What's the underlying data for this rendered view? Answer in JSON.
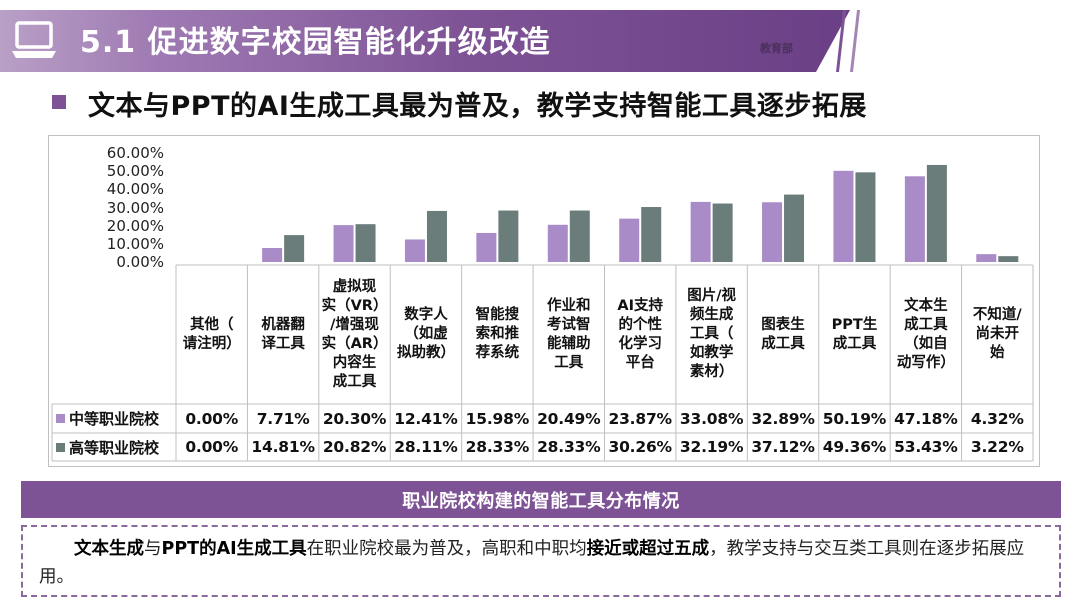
{
  "header": {
    "title": "5.1 促进数字校园智能化升级改造",
    "stamp": "教育部"
  },
  "subtitle": "文本与PPT的AI生成工具最为普及，教学支持智能工具逐步拓展",
  "colors": {
    "accent": "#7e5396",
    "series1": "#a98bc7",
    "series2": "#6b7d7a"
  },
  "chart_data": {
    "type": "bar",
    "title": "职业院校构建的智能工具分布情况",
    "ylim": [
      0,
      60
    ],
    "yticks": [
      "60.00%",
      "50.00%",
      "40.00%",
      "30.00%",
      "20.00%",
      "10.00%",
      "0.00%"
    ],
    "ytick_values": [
      60,
      50,
      40,
      30,
      20,
      10,
      0
    ],
    "categories": [
      "其他（\n请注明）",
      "机器翻\n译工具",
      "虚拟现\n实（VR）\n/增强现\n实（AR）\n内容生\n成工具",
      "数字人\n（如虚\n拟助教）",
      "智能搜\n索和推\n荐系统",
      "作业和\n考试智\n能辅助\n工具",
      "AI支持\n的个性\n化学习\n平台",
      "图片/视\n频生成\n工具（\n如教学\n素材）",
      "图表生\n成工具",
      "PPT生\n成工具",
      "文本生\n成工具\n（如自\n动写作）",
      "不知道/\n尚未开\n始"
    ],
    "series": [
      {
        "name": "中等职业院校",
        "values": [
          0.0,
          7.71,
          20.3,
          12.41,
          15.98,
          20.49,
          23.87,
          33.08,
          32.89,
          50.19,
          47.18,
          4.32
        ],
        "labels": [
          "0.00%",
          "7.71%",
          "20.30%",
          "12.41%",
          "15.98%",
          "20.49%",
          "23.87%",
          "33.08%",
          "32.89%",
          "50.19%",
          "47.18%",
          "4.32%"
        ]
      },
      {
        "name": "高等职业院校",
        "values": [
          0.0,
          14.81,
          20.82,
          28.11,
          28.33,
          28.33,
          30.26,
          32.19,
          37.12,
          49.36,
          53.43,
          3.22
        ],
        "labels": [
          "0.00%",
          "14.81%",
          "20.82%",
          "28.11%",
          "28.33%",
          "28.33%",
          "30.26%",
          "32.19%",
          "37.12%",
          "49.36%",
          "53.43%",
          "3.22%"
        ]
      }
    ]
  },
  "summary": {
    "parts": [
      {
        "text": "文本生成",
        "bold": true
      },
      {
        "text": "与",
        "bold": false
      },
      {
        "text": "PPT的AI生成工具",
        "bold": true
      },
      {
        "text": "在职业院校最为普及，高职和中职均",
        "bold": false
      },
      {
        "text": "接近或超过五成",
        "bold": true
      },
      {
        "text": "，教学支持与交互类工具则在逐步拓展应用。",
        "bold": false
      }
    ]
  }
}
